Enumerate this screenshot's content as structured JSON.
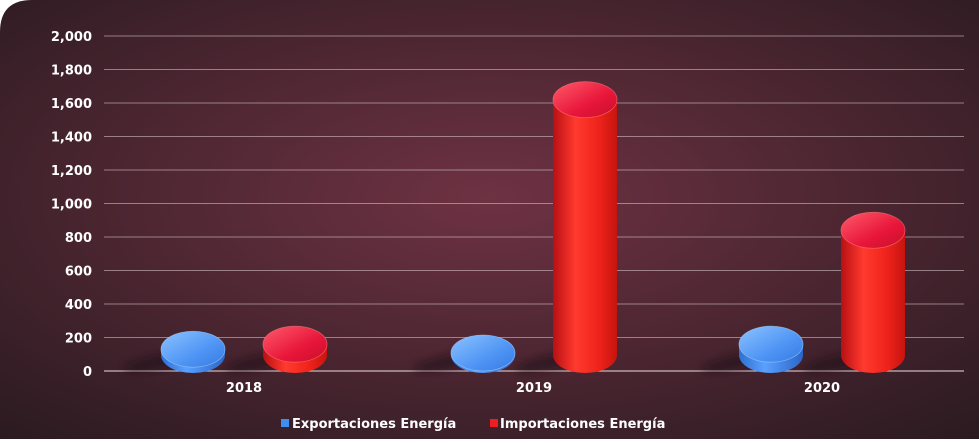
{
  "colors": {
    "background_center": "#6e3243",
    "background_edge": "#2a1a20",
    "export_blue": "#3f8ef0",
    "import_red": "#ee1d23",
    "text": "#ffffff",
    "gridline": "#d9c7cc"
  },
  "chart_data": {
    "type": "bar",
    "title": "",
    "xlabel": "",
    "ylabel": "",
    "categories": [
      "2018",
      "2019",
      "2020"
    ],
    "series": [
      {
        "name": "Exportaciones Energía",
        "values": [
          130,
          100,
          160
        ],
        "color": "#3f8ef0"
      },
      {
        "name": "Importaciones Energía",
        "values": [
          160,
          1620,
          840
        ],
        "color": "#ee1d23"
      }
    ],
    "ylim": [
      0,
      2000
    ],
    "yticks": [
      "0",
      "200",
      "400",
      "600",
      "800",
      "1,000",
      "1,200",
      "1,400",
      "1,600",
      "1,800",
      "2,000"
    ],
    "grid": true,
    "legend_position": "bottom"
  }
}
